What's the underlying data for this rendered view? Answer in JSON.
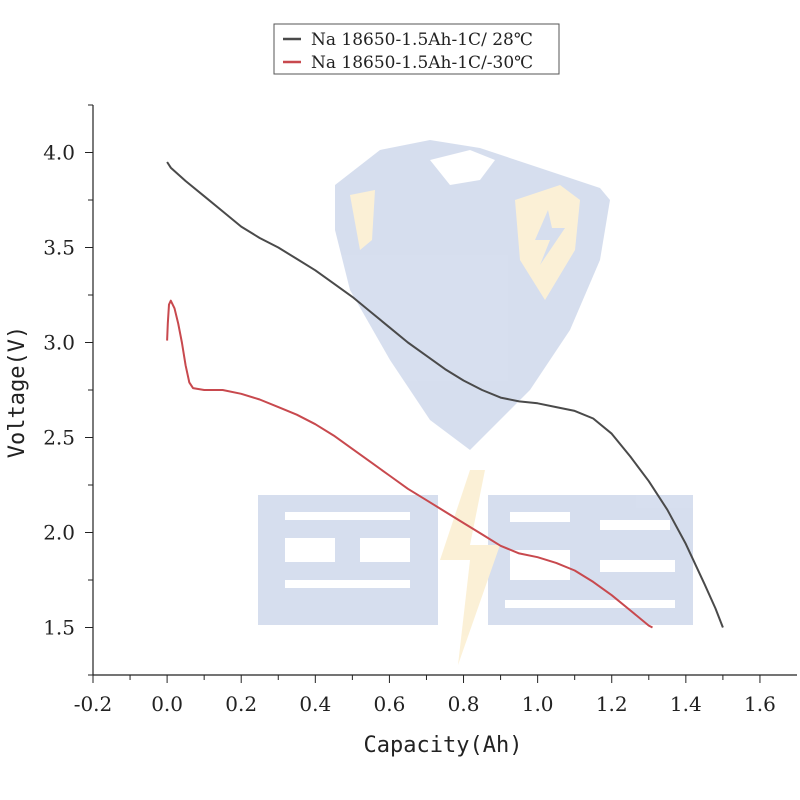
{
  "chart_data": {
    "type": "line",
    "title": "",
    "xlabel": "Capacity(Ah)",
    "ylabel": "Voltage(V)",
    "xlim": [
      -0.2,
      1.7
    ],
    "ylim": [
      1.25,
      4.25
    ],
    "xticks": [
      -0.2,
      0.0,
      0.2,
      0.4,
      0.6,
      0.8,
      1.0,
      1.2,
      1.4,
      1.6
    ],
    "xtick_labels": [
      "-0.2",
      "0.0",
      "0.2",
      "0.4",
      "0.6",
      "0.8",
      "1.0",
      "1.2",
      "1.4",
      "1.6"
    ],
    "yticks": [
      1.5,
      2.0,
      2.5,
      3.0,
      3.5,
      4.0
    ],
    "ytick_labels": [
      "1.5",
      "2.0",
      "2.5",
      "3.0",
      "3.5",
      "4.0"
    ],
    "grid": false,
    "legend_position": "top-center",
    "series": [
      {
        "name": "Na 18650-1.5Ah-1C/ 28℃",
        "color": "#4a4a4a",
        "x": [
          0.0,
          0.01,
          0.05,
          0.1,
          0.15,
          0.2,
          0.25,
          0.3,
          0.35,
          0.4,
          0.45,
          0.5,
          0.55,
          0.6,
          0.65,
          0.7,
          0.75,
          0.8,
          0.85,
          0.9,
          0.95,
          1.0,
          1.05,
          1.1,
          1.15,
          1.2,
          1.25,
          1.3,
          1.35,
          1.4,
          1.45,
          1.48,
          1.5
        ],
        "y": [
          3.95,
          3.92,
          3.85,
          3.77,
          3.69,
          3.61,
          3.55,
          3.5,
          3.44,
          3.38,
          3.31,
          3.24,
          3.16,
          3.08,
          3.0,
          2.93,
          2.86,
          2.8,
          2.75,
          2.71,
          2.69,
          2.68,
          2.66,
          2.64,
          2.6,
          2.52,
          2.4,
          2.27,
          2.12,
          1.94,
          1.73,
          1.6,
          1.5
        ]
      },
      {
        "name": "Na 18650-1.5Ah-1C/-30℃",
        "color": "#c8494e",
        "x": [
          0.0,
          0.002,
          0.005,
          0.01,
          0.02,
          0.03,
          0.04,
          0.05,
          0.06,
          0.07,
          0.1,
          0.15,
          0.2,
          0.25,
          0.3,
          0.35,
          0.4,
          0.45,
          0.5,
          0.55,
          0.6,
          0.65,
          0.7,
          0.75,
          0.8,
          0.85,
          0.9,
          0.95,
          1.0,
          1.05,
          1.1,
          1.15,
          1.2,
          1.25,
          1.3,
          1.31
        ],
        "y": [
          3.01,
          3.1,
          3.2,
          3.22,
          3.18,
          3.1,
          3.0,
          2.88,
          2.79,
          2.76,
          2.75,
          2.75,
          2.73,
          2.7,
          2.66,
          2.62,
          2.57,
          2.51,
          2.44,
          2.37,
          2.3,
          2.23,
          2.17,
          2.11,
          2.05,
          1.99,
          1.93,
          1.89,
          1.87,
          1.84,
          1.8,
          1.74,
          1.67,
          1.59,
          1.51,
          1.5
        ]
      }
    ]
  }
}
